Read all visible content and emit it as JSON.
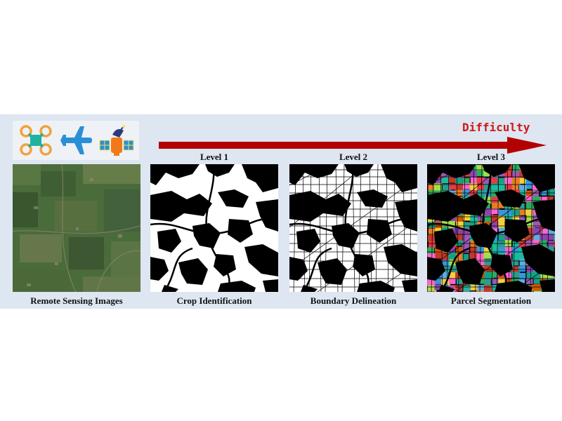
{
  "figure": {
    "difficulty_label": "Difficulty",
    "levels": [
      "Level 1",
      "Level 2",
      "Level 3"
    ],
    "captions": [
      "Remote Sensing Images",
      "Crop Identification",
      "Boundary Delineation",
      "Parcel Segmentation"
    ],
    "icons": [
      "drone-icon",
      "airplane-icon",
      "satellite-icon"
    ],
    "colors": {
      "band": "#dde6f1",
      "arrow": "#b30000",
      "difficulty_text": "#d01818",
      "satellite_tile": "#4a6b3a",
      "mask_crop": "#ffffff",
      "mask_background": "#000000",
      "drone_body": "#20b2a0",
      "drone_rotor": "#f2a23a",
      "airplane": "#2a8fd6",
      "satellite_panel": "#2a8fd6",
      "satellite_body": "#f07a1a"
    }
  }
}
